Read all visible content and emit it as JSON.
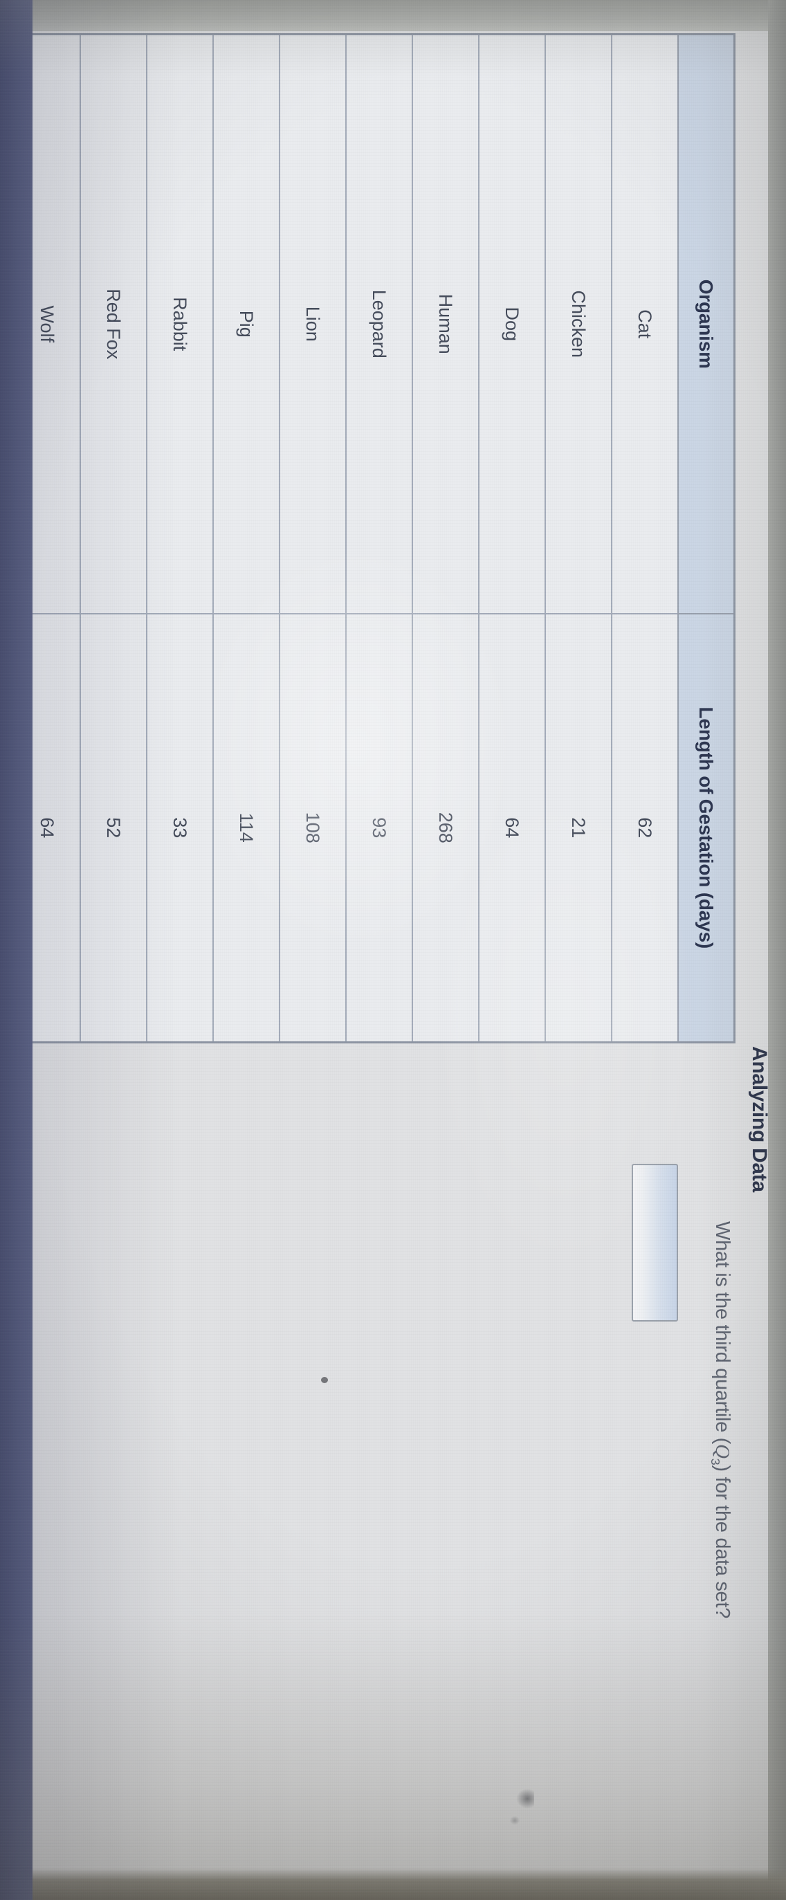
{
  "title": "Analyzing Data",
  "question": {
    "prefix": "What is the third quartile (",
    "variable": "Q",
    "subscript": "3",
    "suffix": ") for the data set?"
  },
  "answer_input": {
    "value": ""
  },
  "table": {
    "headers": [
      "Organism",
      "Length of Gestation (days)"
    ],
    "rows": [
      {
        "organism": "Cat",
        "days": "62"
      },
      {
        "organism": "Chicken",
        "days": "21"
      },
      {
        "organism": "Dog",
        "days": "64"
      },
      {
        "organism": "Human",
        "days": "268"
      },
      {
        "organism": "Leopard",
        "days": "93"
      },
      {
        "organism": "Lion",
        "days": "108"
      },
      {
        "organism": "Pig",
        "days": "114"
      },
      {
        "organism": "Rabbit",
        "days": "33"
      },
      {
        "organism": "Red Fox",
        "days": "52"
      },
      {
        "organism": "Wolf",
        "days": "64"
      }
    ]
  },
  "colors": {
    "header_bg": "#cbd6e5",
    "page_bg": "#e1e2e4",
    "bezel_bottom": "#565d80",
    "table_border": "#98a0ad",
    "title_text": "#262e46",
    "cell_text": "#454c5b",
    "question_text": "#5d6370",
    "input_tint": "#c7d4e7"
  }
}
